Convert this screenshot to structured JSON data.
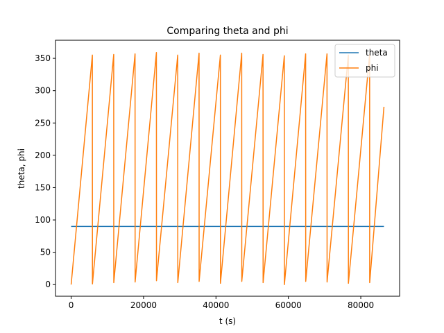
{
  "chart_data": {
    "type": "line",
    "title": "Comparing theta and phi",
    "xlabel": "t (s)",
    "ylabel": "theta, phi",
    "xlim": [
      -4320,
      90720
    ],
    "ylim": [
      -18,
      378
    ],
    "xticks": [
      0,
      20000,
      40000,
      60000,
      80000
    ],
    "xtick_labels": [
      "0",
      "20000",
      "40000",
      "60000",
      "80000"
    ],
    "yticks": [
      0,
      50,
      100,
      150,
      200,
      250,
      300,
      350
    ],
    "ytick_labels": [
      "0",
      "50",
      "100",
      "150",
      "200",
      "250",
      "300",
      "350"
    ],
    "grid": false,
    "legend_position": "top-right",
    "series": [
      {
        "name": "theta",
        "color": "#1f77b4",
        "x": [
          0,
          86400
        ],
        "y": [
          90,
          90
        ]
      },
      {
        "name": "phi",
        "color": "#ff7f0e",
        "x": [
          0,
          5860,
          5880,
          11760,
          11780,
          17650,
          17670,
          23550,
          23570,
          29440,
          29460,
          35330,
          35350,
          41220,
          41240,
          47110,
          47130,
          53000,
          53020,
          58880,
          58900,
          64770,
          64790,
          70670,
          70690,
          76560,
          76580,
          82440,
          82460,
          86400
        ],
        "y": [
          0,
          355,
          1,
          356,
          3,
          357,
          4,
          359,
          6,
          355,
          3,
          358,
          5,
          355,
          2,
          358,
          5,
          356,
          3,
          354,
          0,
          357,
          5,
          357,
          4,
          355,
          2,
          356,
          3,
          275
        ]
      }
    ]
  }
}
